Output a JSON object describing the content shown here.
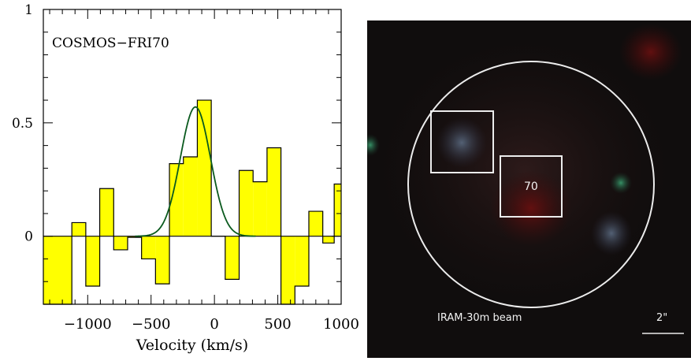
{
  "chart_data": [
    {
      "type": "histogram",
      "annotation": "COSMOS−FRI70",
      "xlabel": "Velocity (km/s)",
      "ylabel": "",
      "xlim": [
        -1350,
        1000
      ],
      "ylim": [
        -0.3,
        1.0
      ],
      "xticks": [
        -1000,
        -500,
        0,
        500,
        1000
      ],
      "xtick_labels": [
        "−1000",
        "−500",
        "0",
        "500",
        "1000"
      ],
      "yticks": [
        0,
        0.5,
        1
      ],
      "ytick_labels": [
        "0",
        "0.5",
        "1"
      ],
      "fill_color": "#ffff00",
      "fit_color": "#0a5a1e",
      "series": [
        {
          "kind": "step",
          "bins_left": [
            -1350,
            -1125,
            -1015,
            -905,
            -795,
            -685,
            -575,
            -465,
            -355,
            -245,
            -135,
            -25,
            85,
            195,
            305,
            415,
            525,
            635,
            745,
            855,
            945
          ],
          "bins_right": [
            -1125,
            -1015,
            -905,
            -795,
            -685,
            -575,
            -465,
            -355,
            -245,
            -135,
            -25,
            85,
            195,
            305,
            415,
            525,
            635,
            745,
            855,
            945,
            1000
          ],
          "values": [
            -0.3,
            0.06,
            -0.22,
            0.21,
            -0.06,
            -0.005,
            -0.1,
            -0.21,
            0.32,
            0.35,
            0.6,
            0.0,
            -0.19,
            0.29,
            0.24,
            0.39,
            -0.32,
            -0.22,
            0.11,
            -0.03,
            0.23
          ]
        },
        {
          "kind": "gaussian",
          "amplitude": 0.57,
          "center": -150,
          "fwhm": 280
        }
      ]
    }
  ],
  "image": {
    "labels": {
      "source_id": "70",
      "beam": "IRAM-30m beam",
      "scale": "2\""
    },
    "colors": {
      "background": "#0d0c0c",
      "overlay": "#ececec"
    }
  }
}
